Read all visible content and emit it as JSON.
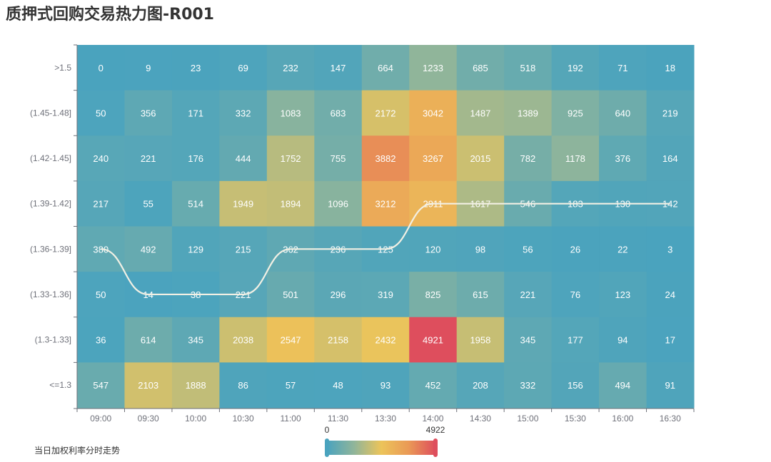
{
  "chart_data": {
    "type": "heatmap",
    "title": "质押式回购交易热力图-R001",
    "x_categories": [
      "09:00",
      "09:30",
      "10:00",
      "10:30",
      "11:00",
      "11:30",
      "13:30",
      "14:00",
      "14:30",
      "15:00",
      "15:30",
      "16:00",
      "16:30"
    ],
    "y_categories": [
      ">1.5",
      "(1.45-1.48]",
      "(1.42-1.45]",
      "(1.39-1.42]",
      "(1.36-1.39]",
      "(1.33-1.36]",
      "(1.3-1.33]",
      "<=1.3"
    ],
    "values": [
      [
        0,
        9,
        23,
        69,
        232,
        147,
        664,
        1233,
        685,
        518,
        192,
        71,
        18
      ],
      [
        50,
        356,
        171,
        332,
        1083,
        683,
        2172,
        3042,
        1487,
        1389,
        925,
        640,
        219
      ],
      [
        240,
        221,
        176,
        444,
        1752,
        755,
        3882,
        3267,
        2015,
        782,
        1178,
        376,
        164
      ],
      [
        217,
        55,
        514,
        1949,
        1894,
        1096,
        3212,
        2911,
        1617,
        546,
        183,
        130,
        142
      ],
      [
        380,
        492,
        129,
        215,
        362,
        236,
        125,
        120,
        98,
        56,
        26,
        22,
        3
      ],
      [
        50,
        14,
        38,
        221,
        501,
        296,
        319,
        825,
        615,
        221,
        76,
        123,
        24
      ],
      [
        36,
        614,
        345,
        2038,
        2547,
        2158,
        2432,
        4921,
        1958,
        345,
        177,
        94,
        17
      ],
      [
        547,
        2103,
        1888,
        86,
        57,
        48,
        93,
        452,
        208,
        332,
        156,
        494,
        91
      ]
    ],
    "visual_map": {
      "min": 0,
      "max": 4922,
      "min_label": "0",
      "max_label": "4922"
    },
    "colors": [
      "#4aa3be",
      "#90b59a",
      "#ecc45a",
      "#ea9a56",
      "#de4e5d"
    ],
    "trend_line": {
      "name": "当日加权利率分时走势",
      "color": "#f2f0e4",
      "y_category_per_x": [
        "(1.36-1.39]",
        "(1.33-1.36]",
        "(1.33-1.36]",
        "(1.33-1.36]",
        "(1.36-1.39]",
        "(1.36-1.39]",
        "(1.36-1.39]",
        "(1.39-1.42]",
        "(1.39-1.42]",
        "(1.39-1.42]",
        "(1.39-1.42]",
        "(1.39-1.42]",
        "(1.39-1.42]"
      ]
    },
    "legend_position": "bottom-left",
    "label_color": "#ffffff"
  }
}
